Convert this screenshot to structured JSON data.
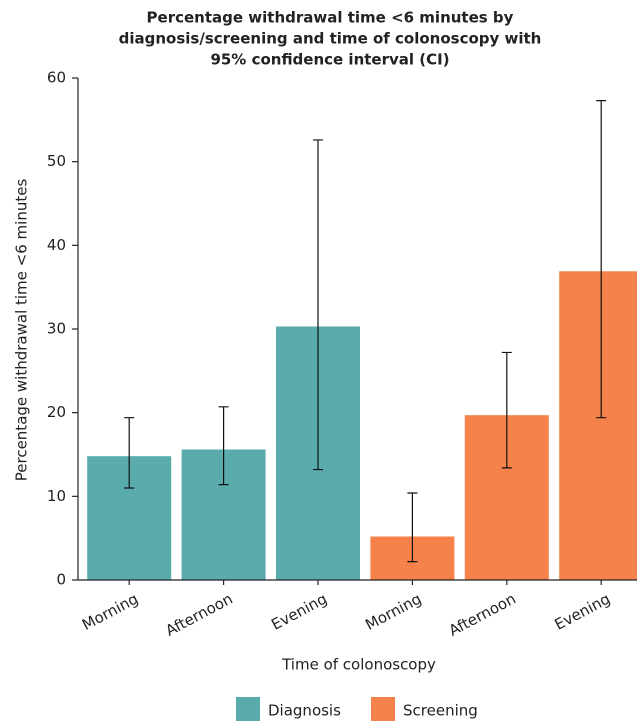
{
  "chart_data": {
    "type": "bar",
    "title": [
      "Percentage withdrawal time <6 minutes by",
      "diagnosis/screening and time of colonoscopy with",
      "95% confidence interval (CI)"
    ],
    "x_label": "Time of colonoscopy",
    "y_label": "Percentage withdrawal time <6 minutes",
    "categories": [
      "Morning",
      "Afternoon",
      "Evening",
      "Morning",
      "Afternoon",
      "Evening"
    ],
    "series": [
      {
        "name": "Diagnosis",
        "color": "#5aabac",
        "values": [
          14.8,
          15.6,
          30.3,
          null,
          null,
          null
        ],
        "ci_low": [
          11.0,
          11.4,
          13.2,
          null,
          null,
          null
        ],
        "ci_high": [
          19.4,
          20.7,
          52.6,
          null,
          null,
          null
        ]
      },
      {
        "name": "Screening",
        "color": "#f4824a",
        "values": [
          null,
          null,
          null,
          5.2,
          19.7,
          36.9
        ],
        "ci_low": [
          null,
          null,
          null,
          2.2,
          13.4,
          19.4
        ],
        "ci_high": [
          null,
          null,
          null,
          10.4,
          27.2,
          57.3
        ]
      }
    ],
    "ylim": [
      0,
      60
    ],
    "yticks": [
      0,
      10,
      20,
      30,
      40,
      50,
      60
    ],
    "legend": "bottom"
  }
}
